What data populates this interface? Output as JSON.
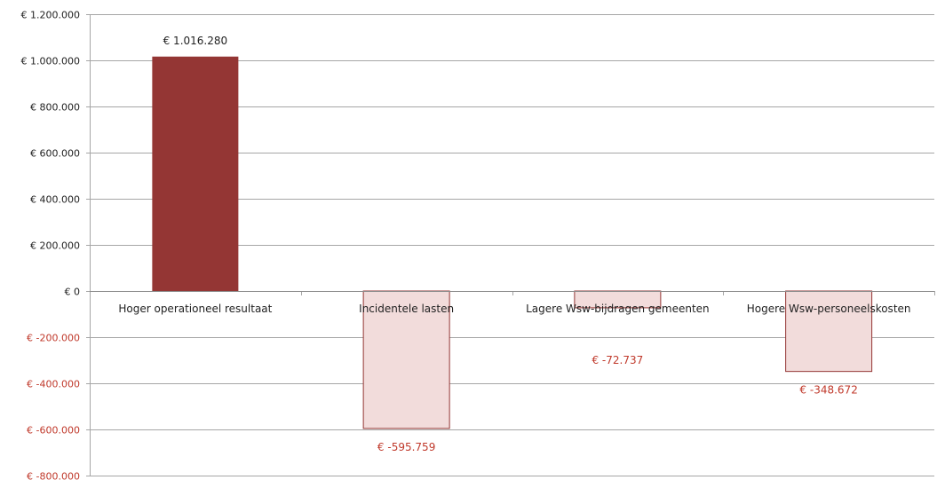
{
  "chart_data": {
    "type": "bar",
    "title": "",
    "xlabel": "",
    "ylabel": "",
    "ylim": [
      -800000,
      1200000
    ],
    "ytick_step": 200000,
    "yticks": [
      {
        "value": 1200000,
        "label": "€ 1.200.000"
      },
      {
        "value": 1000000,
        "label": "€ 1.000.000"
      },
      {
        "value": 800000,
        "label": "€ 800.000"
      },
      {
        "value": 600000,
        "label": "€ 600.000"
      },
      {
        "value": 400000,
        "label": "€ 400.000"
      },
      {
        "value": 200000,
        "label": "€ 200.000"
      },
      {
        "value": 0,
        "label": "€ 0"
      },
      {
        "value": -200000,
        "label": "€ -200.000"
      },
      {
        "value": -400000,
        "label": "€ -400.000"
      },
      {
        "value": -600000,
        "label": "€ -600.000"
      },
      {
        "value": -800000,
        "label": "€ -800.000"
      }
    ],
    "grid": true,
    "legend": "none",
    "categories": [
      "Hoger operationeel resultaat",
      "Incidentele lasten",
      "Lagere Wsw-bijdragen gemeenten",
      "Hogere Wsw-personeelskosten"
    ],
    "values": [
      1016280,
      -595759,
      -72737,
      -348672
    ],
    "data_labels": [
      "€ 1.016.280",
      "€ -595.759",
      "€ -72.737",
      "€ -348.672"
    ],
    "colors": {
      "positive_fill": "#943634",
      "negative_fill": "#f2dcdb",
      "negative_stroke": "#943634",
      "positive_label": "#222222",
      "negative_label": "#c0392b",
      "negative_tick_label": "#c0392b",
      "gridline": "#a6a6a6"
    }
  }
}
